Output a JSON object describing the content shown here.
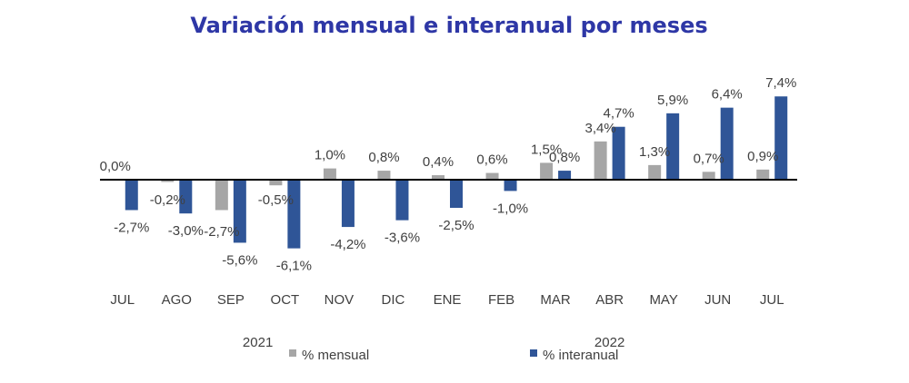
{
  "chart_data": {
    "type": "bar",
    "title": "Variación mensual e interanual por meses",
    "categories": [
      "JUL",
      "AGO",
      "SEP",
      "OCT",
      "NOV",
      "DIC",
      "ENE",
      "FEB",
      "MAR",
      "ABR",
      "MAY",
      "JUN",
      "JUL"
    ],
    "year_groups": [
      {
        "label": "2021",
        "categories": [
          "JUL",
          "AGO",
          "SEP",
          "OCT",
          "NOV",
          "DIC"
        ]
      },
      {
        "label": "2022",
        "categories": [
          "ENE",
          "FEB",
          "MAR",
          "ABR",
          "MAY",
          "JUN",
          "JUL"
        ]
      }
    ],
    "series": [
      {
        "name": "% mensual",
        "color": "#A6A6A6",
        "values": [
          0.0,
          -0.2,
          -2.7,
          -0.5,
          1.0,
          0.8,
          0.4,
          0.6,
          1.5,
          3.4,
          1.3,
          0.7,
          0.9
        ],
        "labels": [
          "0,0%",
          "-0,2%",
          "-2,7%",
          "-0,5%",
          "1,0%",
          "0,8%",
          "0,4%",
          "0,6%",
          "1,5%",
          "3,4%",
          "1,3%",
          "0,7%",
          "0,9%"
        ]
      },
      {
        "name": "% interanual",
        "color": "#2F5597",
        "values": [
          -2.7,
          -3.0,
          -5.6,
          -6.1,
          -4.2,
          -3.6,
          -2.5,
          -1.0,
          0.8,
          4.7,
          5.9,
          6.4,
          7.4
        ],
        "labels": [
          "-2,7%",
          "-3,0%",
          "-5,6%",
          "-6,1%",
          "-4,2%",
          "-3,6%",
          "-2,5%",
          "-1,0%",
          "0,8%",
          "4,7%",
          "5,9%",
          "6,4%",
          "7,4%"
        ]
      }
    ],
    "legend_position": "bottom",
    "grid": false,
    "axis_line_color": "#000000"
  }
}
